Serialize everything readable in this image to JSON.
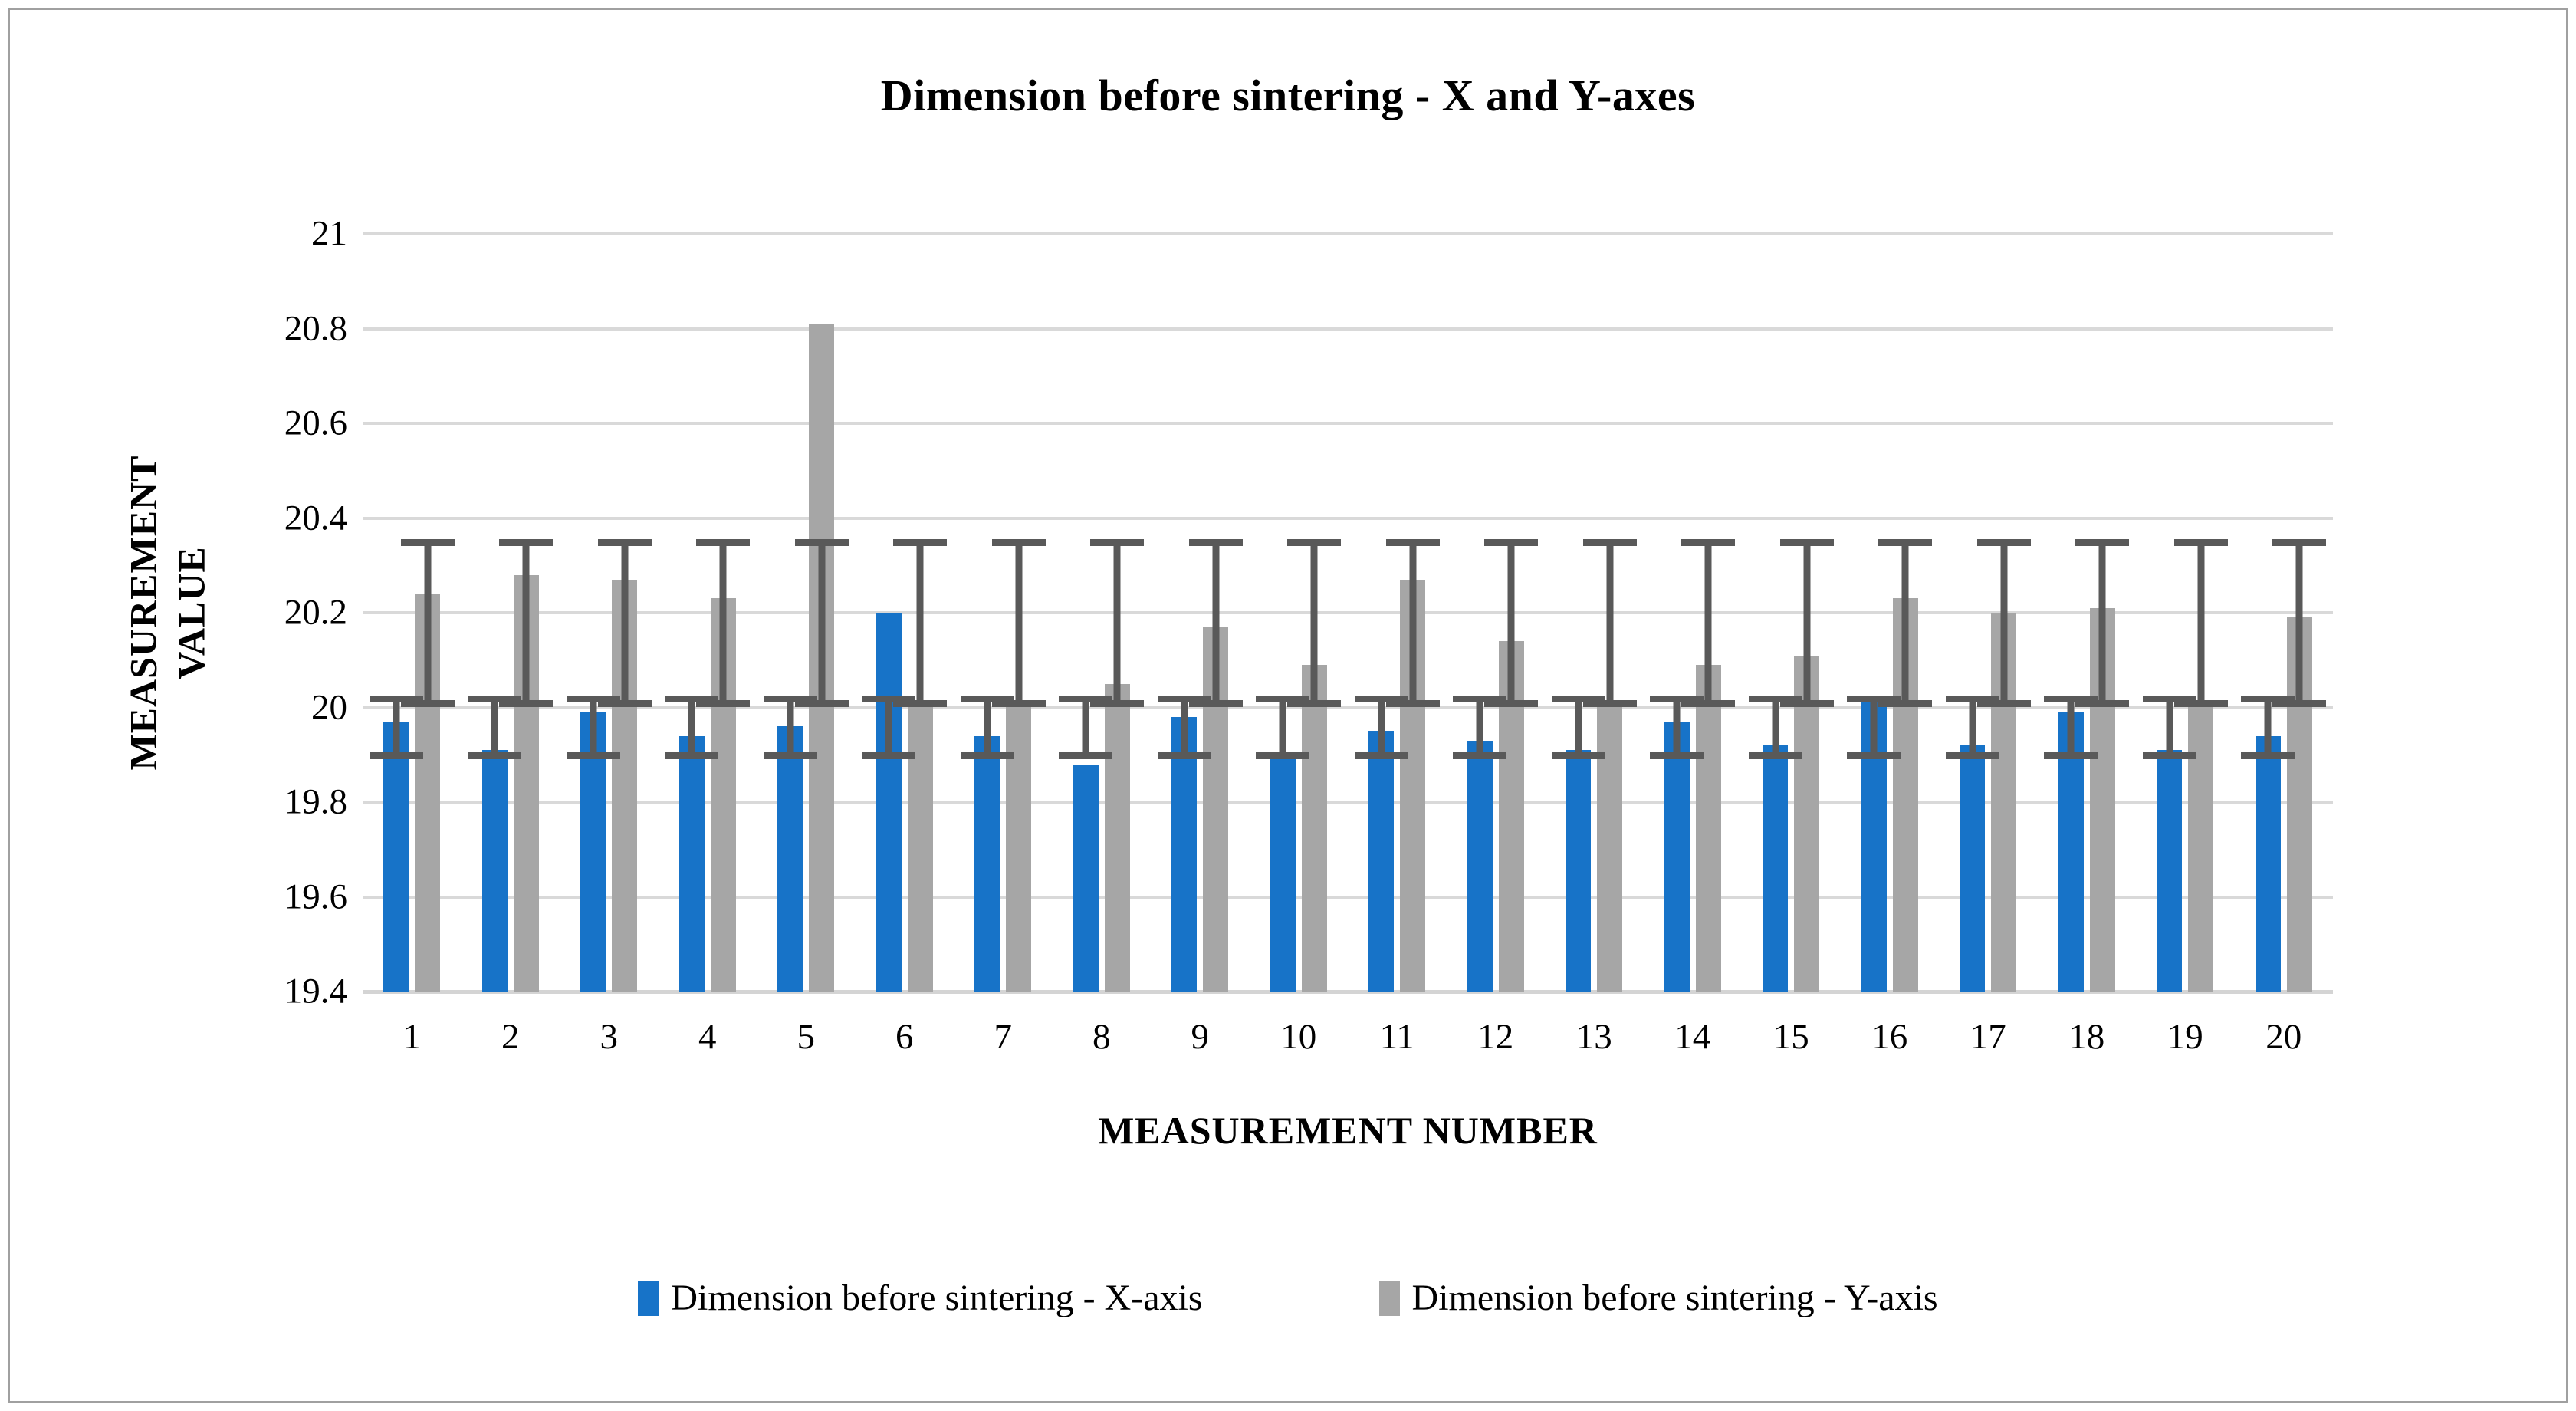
{
  "figure": {
    "title": "Dimension before sintering - X and Y-axes"
  },
  "chart_data": {
    "type": "bar",
    "title": "Dimension before sintering - X and Y-axes",
    "xlabel": "MEASUREMENT NUMBER",
    "ylabel": "MEASUREMENT VALUE",
    "ylabel_lines": {
      "0": "MEASUREMENT",
      "1": "VALUE"
    },
    "categories": [
      "1",
      "2",
      "3",
      "4",
      "5",
      "6",
      "7",
      "8",
      "9",
      "10",
      "11",
      "12",
      "13",
      "14",
      "15",
      "16",
      "17",
      "18",
      "19",
      "20"
    ],
    "series": [
      {
        "name": "Dimension before sintering - X-axis",
        "color": "#1773c8",
        "values": [
          19.97,
          19.91,
          19.99,
          19.94,
          19.96,
          20.2,
          19.94,
          19.88,
          19.98,
          19.89,
          19.95,
          19.93,
          19.91,
          19.97,
          19.92,
          20.01,
          19.92,
          19.99,
          19.91,
          19.94
        ],
        "error_bar_absolute": {
          "low": 19.89,
          "high": 20.025
        }
      },
      {
        "name": "Dimension before sintering - Y-axis",
        "color": "#a6a6a6",
        "values": [
          20.24,
          20.28,
          20.27,
          20.23,
          20.81,
          20.01,
          20.01,
          20.05,
          20.17,
          20.09,
          20.27,
          20.14,
          20.01,
          20.09,
          20.11,
          20.23,
          20.2,
          20.21,
          20.01,
          20.19
        ],
        "error_bar_absolute": {
          "low": 20.0,
          "high": 20.355
        }
      }
    ],
    "ylim": [
      19.4,
      21
    ],
    "yticks": [
      "21",
      "20.8",
      "20.6",
      "20.4",
      "20.2",
      "20",
      "19.8",
      "19.6",
      "19.4"
    ],
    "ytick_values": [
      21,
      20.8,
      20.6,
      20.4,
      20.2,
      20,
      19.8,
      19.6,
      19.4
    ],
    "grid": true,
    "gridline_color": "#d9d9d9",
    "error_bar_color": "#595959",
    "legend_position": "bottom"
  }
}
